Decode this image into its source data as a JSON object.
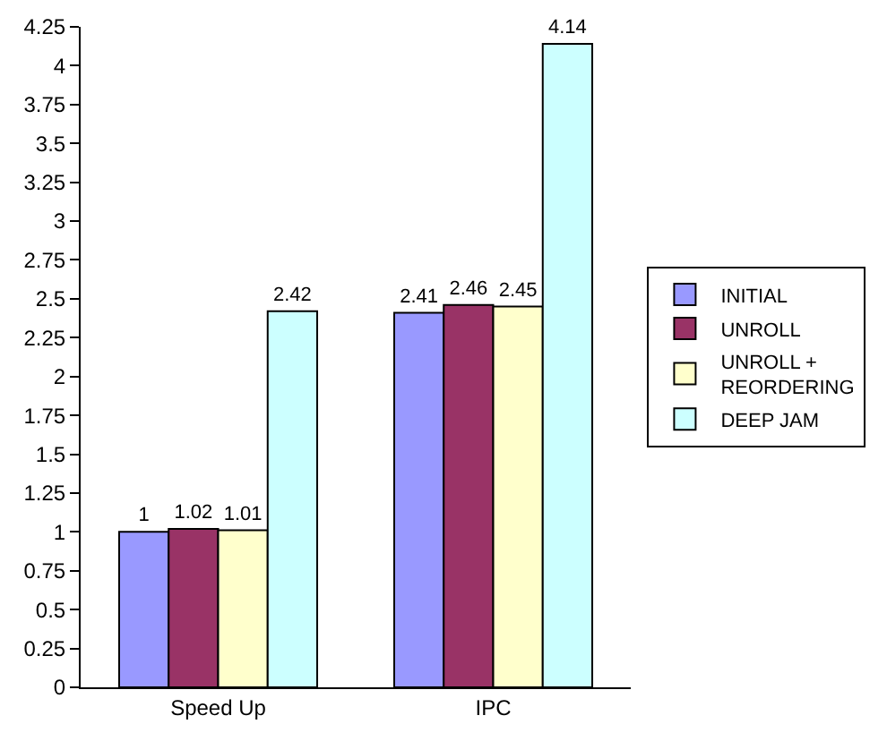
{
  "chart_data": {
    "type": "bar",
    "categories": [
      "Speed Up",
      "IPC"
    ],
    "series": [
      {
        "name": "INITIAL",
        "color": "#9999ff",
        "values": [
          1,
          2.41
        ]
      },
      {
        "name": "UNROLL",
        "color": "#993366",
        "values": [
          1.02,
          2.46
        ]
      },
      {
        "name": "UNROLL + REORDERING",
        "color": "#ffffcc",
        "values": [
          1.01,
          2.45
        ]
      },
      {
        "name": "DEEP JAM",
        "color": "#ccffff",
        "values": [
          2.42,
          4.14
        ]
      }
    ],
    "ylim": [
      0,
      4.25
    ],
    "yticks": [
      0,
      0.25,
      0.5,
      0.75,
      1,
      1.25,
      1.5,
      1.75,
      2,
      2.25,
      2.5,
      2.75,
      3,
      3.25,
      3.5,
      3.75,
      4,
      4.25
    ],
    "grid": false,
    "legend": "right",
    "data_labels": true
  }
}
